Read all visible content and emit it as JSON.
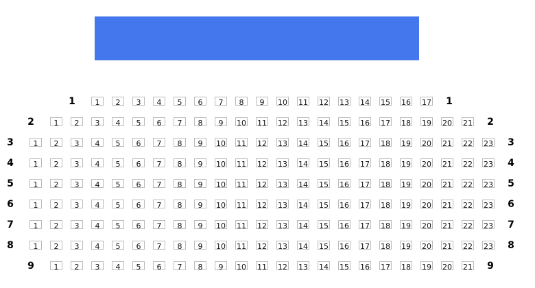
{
  "screen": {
    "color": "#4477ee"
  },
  "rows": [
    {
      "label": "1",
      "seats": [
        "1",
        "2",
        "3",
        "4",
        "5",
        "6",
        "7",
        "8",
        "9",
        "10",
        "11",
        "12",
        "13",
        "14",
        "15",
        "16",
        "17"
      ]
    },
    {
      "label": "2",
      "seats": [
        "1",
        "2",
        "3",
        "4",
        "5",
        "6",
        "7",
        "8",
        "9",
        "10",
        "11",
        "12",
        "13",
        "14",
        "15",
        "16",
        "17",
        "18",
        "19",
        "20",
        "21"
      ]
    },
    {
      "label": "3",
      "seats": [
        "1",
        "2",
        "3",
        "4",
        "5",
        "6",
        "7",
        "8",
        "9",
        "10",
        "11",
        "12",
        "13",
        "14",
        "15",
        "16",
        "17",
        "18",
        "19",
        "20",
        "21",
        "22",
        "23"
      ]
    },
    {
      "label": "4",
      "seats": [
        "1",
        "2",
        "3",
        "4",
        "5",
        "6",
        "7",
        "8",
        "9",
        "10",
        "11",
        "12",
        "13",
        "14",
        "15",
        "16",
        "17",
        "18",
        "19",
        "20",
        "21",
        "22",
        "23"
      ]
    },
    {
      "label": "5",
      "seats": [
        "1",
        "2",
        "3",
        "4",
        "5",
        "6",
        "7",
        "8",
        "9",
        "10",
        "11",
        "12",
        "13",
        "14",
        "15",
        "16",
        "17",
        "18",
        "19",
        "20",
        "21",
        "22",
        "23"
      ]
    },
    {
      "label": "6",
      "seats": [
        "1",
        "2",
        "3",
        "4",
        "5",
        "6",
        "7",
        "8",
        "9",
        "10",
        "11",
        "12",
        "13",
        "14",
        "15",
        "16",
        "17",
        "18",
        "19",
        "20",
        "21",
        "22",
        "23"
      ]
    },
    {
      "label": "7",
      "seats": [
        "1",
        "2",
        "3",
        "4",
        "5",
        "6",
        "7",
        "8",
        "9",
        "10",
        "11",
        "12",
        "13",
        "14",
        "15",
        "16",
        "17",
        "18",
        "19",
        "20",
        "21",
        "22",
        "23"
      ]
    },
    {
      "label": "8",
      "seats": [
        "1",
        "2",
        "3",
        "4",
        "5",
        "6",
        "7",
        "8",
        "9",
        "10",
        "11",
        "12",
        "13",
        "14",
        "15",
        "16",
        "17",
        "18",
        "19",
        "20",
        "21",
        "22",
        "23"
      ]
    },
    {
      "label": "9",
      "seats": [
        "1",
        "2",
        "3",
        "4",
        "5",
        "6",
        "7",
        "8",
        "9",
        "10",
        "11",
        "12",
        "13",
        "14",
        "15",
        "16",
        "17",
        "18",
        "19",
        "20",
        "21"
      ]
    }
  ]
}
